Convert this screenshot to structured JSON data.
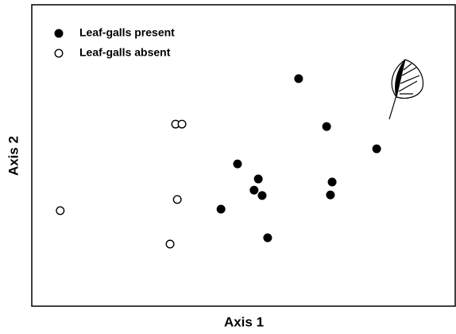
{
  "chart_data": {
    "type": "scatter",
    "xlabel": "Axis 1",
    "ylabel": "Axis 2",
    "xlim": [
      0,
      100
    ],
    "ylim": [
      0,
      100
    ],
    "legend": "upper left",
    "series": [
      {
        "name": "Leaf-galls present",
        "color": "#000000",
        "filled": true,
        "x": [
          62.9,
          69.5,
          81.3,
          48.5,
          53.4,
          52.4,
          54.3,
          70.8,
          70.4,
          44.6,
          55.6
        ],
        "y": [
          75.5,
          59.6,
          52.2,
          47.2,
          42.2,
          38.5,
          36.7,
          41.2,
          36.9,
          32.2,
          22.7
        ]
      },
      {
        "name": "Leaf-galls absent",
        "color": "#000000",
        "filled": false,
        "x": [
          33.9,
          35.4,
          34.3,
          6.7,
          32.6
        ],
        "y": [
          60.4,
          60.4,
          35.4,
          31.7,
          20.6
        ]
      }
    ]
  }
}
